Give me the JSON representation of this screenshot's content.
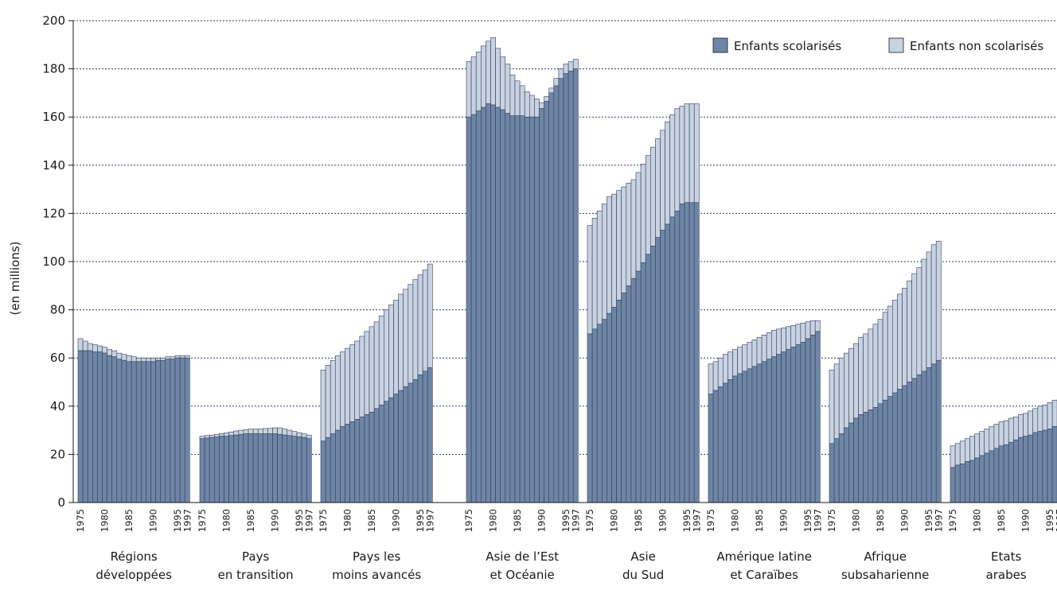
{
  "chart_data": {
    "type": "bar",
    "stacked": true,
    "ylabel": "(en millions)",
    "ylim": [
      0,
      200
    ],
    "y_ticks": [
      0,
      20,
      40,
      60,
      80,
      100,
      120,
      140,
      160,
      180,
      200
    ],
    "grid": "horizontal dotted",
    "legend_position": "top-right",
    "years": [
      1975,
      1976,
      1977,
      1978,
      1979,
      1980,
      1981,
      1982,
      1983,
      1984,
      1985,
      1986,
      1987,
      1988,
      1989,
      1990,
      1991,
      1992,
      1993,
      1994,
      1995,
      1996,
      1997
    ],
    "year_tick_labels": [
      "1975",
      "1980",
      "1985",
      "1990",
      "1995",
      "1997"
    ],
    "series": [
      {
        "name": "Enfants scolarisés",
        "color": "#6f85a6"
      },
      {
        "name": "Enfants non scolarisés",
        "color": "#c9d2e0"
      }
    ],
    "groups": [
      {
        "label_lines": [
          "Régions",
          "développées"
        ],
        "enrolled": [
          63,
          63,
          63,
          62.5,
          62.5,
          62,
          61,
          60.5,
          59.5,
          59,
          58.5,
          58.5,
          58.5,
          58.5,
          58.5,
          58.5,
          59,
          59,
          59.5,
          59.5,
          60,
          60,
          60
        ],
        "total": [
          68,
          67,
          66,
          65.5,
          65,
          64.5,
          63.5,
          63,
          62,
          61.5,
          61,
          60.5,
          60,
          60,
          60,
          60,
          60,
          60,
          60.5,
          60.5,
          61,
          61,
          61
        ]
      },
      {
        "label_lines": [
          "Pays",
          "en transition"
        ],
        "enrolled": [
          26.5,
          26.8,
          27,
          27.2,
          27.5,
          27.5,
          27.8,
          28,
          28.3,
          28.5,
          28.5,
          28.5,
          28.5,
          28.5,
          28.5,
          28.5,
          28.3,
          28,
          27.8,
          27.5,
          27.3,
          27,
          26.5
        ],
        "total": [
          27.5,
          27.8,
          28,
          28.3,
          28.6,
          28.9,
          29.3,
          29.7,
          30,
          30.3,
          30.5,
          30.5,
          30.5,
          30.7,
          30.8,
          31,
          31,
          30.5,
          30,
          29.5,
          29,
          28.5,
          28
        ]
      },
      {
        "label_lines": [
          "Pays les",
          "moins avancés"
        ],
        "enrolled": [
          25.5,
          27,
          28.5,
          30,
          31.5,
          32.5,
          33.5,
          34.5,
          35.5,
          36.5,
          37.5,
          39,
          40.5,
          42,
          43.5,
          45,
          46.5,
          48,
          49.5,
          51,
          53,
          54.5,
          56
        ],
        "total": [
          55,
          57,
          59,
          61,
          62.5,
          64,
          65.5,
          67,
          69,
          71,
          73,
          75,
          77.5,
          80,
          82,
          84,
          86.5,
          88.5,
          90.5,
          92.5,
          94.5,
          96.5,
          99
        ]
      },
      {
        "label_lines": [
          "Asie de l’Est",
          "et Océanie"
        ],
        "enrolled": [
          160,
          161,
          162.5,
          164,
          165.5,
          165,
          164,
          163,
          161.5,
          160.5,
          160.5,
          160.5,
          160,
          160,
          160,
          163.5,
          166.5,
          170,
          173,
          176,
          178,
          179,
          180
        ],
        "total": [
          183,
          185,
          187,
          189.5,
          191.5,
          193,
          188.5,
          185,
          182,
          177.5,
          175,
          173,
          170.5,
          169,
          167.5,
          166,
          168.5,
          172,
          176,
          180,
          182,
          183,
          184
        ]
      },
      {
        "label_lines": [
          "Asie",
          "du Sud"
        ],
        "enrolled": [
          70,
          72,
          74,
          76,
          78.5,
          81,
          84,
          87,
          90,
          93,
          96,
          99.5,
          103,
          106.5,
          110,
          113,
          115.5,
          118.5,
          121,
          124,
          124.5,
          124.5,
          124.5
        ],
        "total": [
          115,
          118,
          121,
          124,
          127,
          128,
          129.5,
          131,
          132.5,
          134,
          137,
          140.5,
          144,
          147.5,
          151,
          154.5,
          158,
          161,
          163.5,
          164.5,
          165.5,
          165.5,
          165.5
        ]
      },
      {
        "label_lines": [
          "Amérique latine",
          "et Caraïbes"
        ],
        "enrolled": [
          45,
          46.5,
          48,
          49.5,
          51,
          52.5,
          53.5,
          54.5,
          55.5,
          56.5,
          57.5,
          58.5,
          59.5,
          60.5,
          61.5,
          62.5,
          63.5,
          64.5,
          65.5,
          66.5,
          68,
          69.5,
          71
        ],
        "total": [
          57.5,
          58.5,
          60,
          61.5,
          62.5,
          63.5,
          64.5,
          65.5,
          66.5,
          67.5,
          68.5,
          69.5,
          70.5,
          71.5,
          72,
          72.5,
          73,
          73.5,
          74,
          74.5,
          75,
          75.5,
          75.5
        ]
      },
      {
        "label_lines": [
          "Afrique",
          "subsaharienne"
        ],
        "enrolled": [
          24.5,
          26.5,
          28.5,
          31,
          33,
          35,
          36.5,
          37.5,
          38.5,
          39.5,
          41,
          42.5,
          44,
          45.5,
          47,
          48.5,
          50,
          51.5,
          53,
          54.5,
          56,
          57.5,
          59
        ],
        "total": [
          55,
          57.5,
          60,
          62,
          64,
          66,
          68.5,
          70,
          72,
          74,
          76,
          79,
          81.5,
          84,
          86.5,
          89,
          92,
          95,
          97.5,
          101,
          104,
          107,
          108.5
        ]
      },
      {
        "label_lines": [
          "Etats",
          "arabes"
        ],
        "enrolled": [
          14.5,
          15.5,
          16,
          17,
          17.5,
          18.5,
          19.5,
          20.5,
          21.5,
          22.5,
          23.5,
          24,
          25,
          26,
          27,
          27.5,
          28,
          29,
          29.5,
          30,
          30.5,
          31.5,
          32
        ],
        "total": [
          23.5,
          24.5,
          25.5,
          26.5,
          27.5,
          28.5,
          29.5,
          30.5,
          31.5,
          32.5,
          33.5,
          34,
          35,
          35.5,
          36.5,
          37,
          38,
          39,
          40,
          40.5,
          41.5,
          42.5,
          43
        ]
      }
    ]
  }
}
